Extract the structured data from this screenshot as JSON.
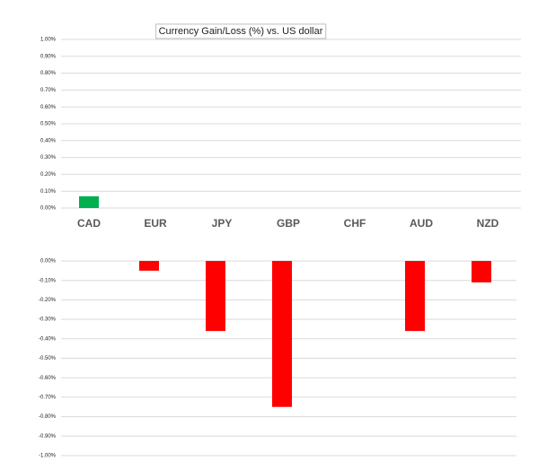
{
  "chart_data": [
    {
      "type": "bar",
      "title": "Currency  Gain/Loss (%) vs. US dollar",
      "categories": [
        "CAD",
        "EUR",
        "JPY",
        "GBP",
        "CHF",
        "AUD",
        "NZD"
      ],
      "values": [
        0.07,
        0,
        0,
        0,
        0,
        0,
        0
      ],
      "color": "#00b050",
      "ylim": [
        0,
        1
      ],
      "yticks": [
        {
          "value": 0,
          "label": "0.00%"
        },
        {
          "value": 0.1,
          "label": "0.10%"
        },
        {
          "value": 0.2,
          "label": "0.20%"
        },
        {
          "value": 0.3,
          "label": "0.30%"
        },
        {
          "value": 0.4,
          "label": "0.40%"
        },
        {
          "value": 0.5,
          "label": "0.50%"
        },
        {
          "value": 0.6,
          "label": "0.60%"
        },
        {
          "value": 0.7,
          "label": "0.70%"
        },
        {
          "value": 0.8,
          "label": "0.80%"
        },
        {
          "value": 0.9,
          "label": "0.90%"
        },
        {
          "value": 1,
          "label": "1.00%"
        }
      ],
      "grid": true
    },
    {
      "type": "bar",
      "categories": [
        null,
        null,
        null,
        null,
        null,
        null,
        null
      ],
      "values": [
        0,
        -0.05,
        -0.36,
        -0.75,
        0,
        -0.36,
        -0.11
      ],
      "color": "#ff0000",
      "ylim": [
        -1,
        0
      ],
      "yticks": [
        {
          "value": -1,
          "label": "-1.00%"
        },
        {
          "value": -0.9,
          "label": "-0.90%"
        },
        {
          "value": -0.8,
          "label": "-0.80%"
        },
        {
          "value": -0.7,
          "label": "-0.70%"
        },
        {
          "value": -0.6,
          "label": "-0.60%"
        },
        {
          "value": -0.5,
          "label": "-0.50%"
        },
        {
          "value": -0.4,
          "label": "-0.40%"
        },
        {
          "value": -0.3,
          "label": "-0.30%"
        },
        {
          "value": -0.2,
          "label": "-0.20%"
        },
        {
          "value": -0.1,
          "label": "-0.10%"
        },
        {
          "value": 0,
          "label": "0.00%"
        }
      ],
      "grid": true
    }
  ]
}
